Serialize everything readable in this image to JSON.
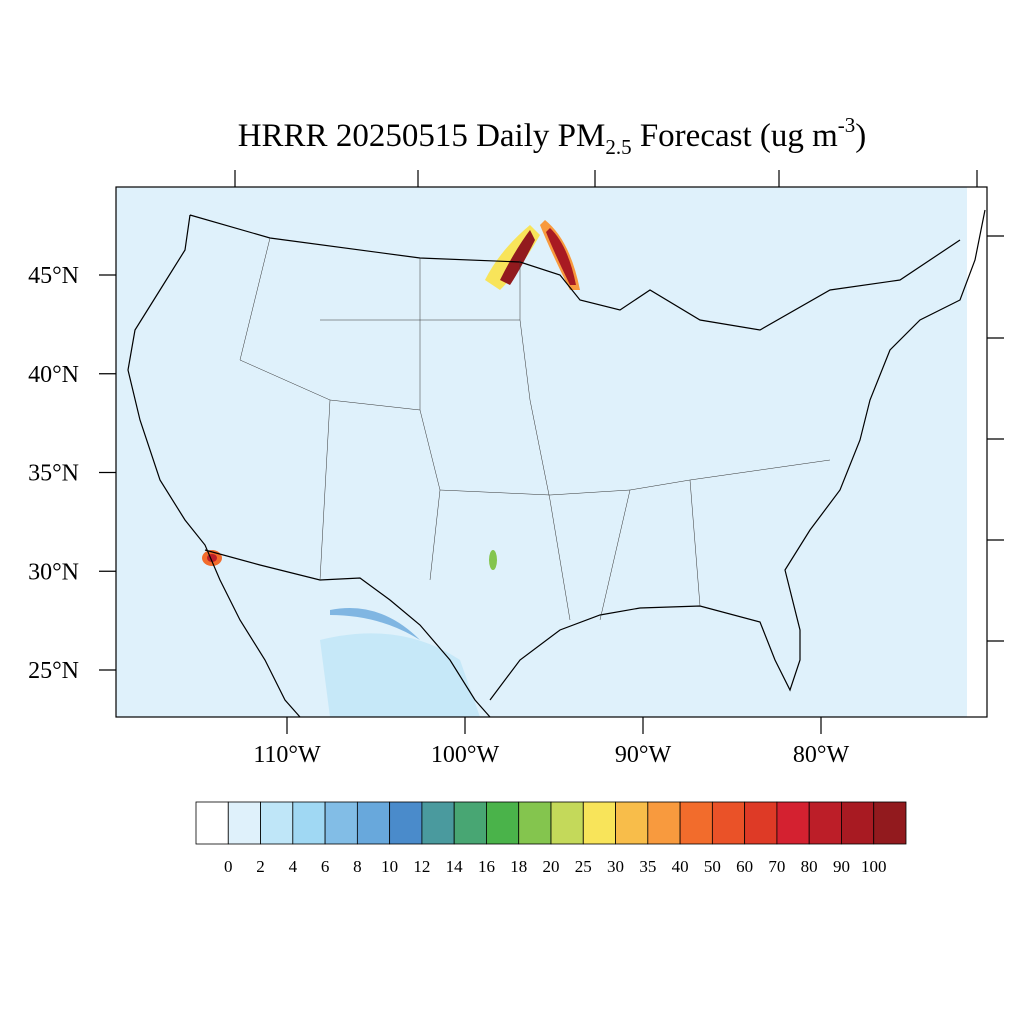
{
  "map": {
    "title": {
      "main": "HRRR 20250515 Daily PM",
      "sub": "2.5",
      "middle": " Forecast (ug m",
      "sup": "-3",
      "end": ")"
    },
    "lat_ticks": [
      {
        "value": 45,
        "label": "45°N"
      },
      {
        "value": 40,
        "label": "40°N"
      },
      {
        "value": 35,
        "label": "35°N"
      },
      {
        "value": 30,
        "label": "30°N"
      },
      {
        "value": 25,
        "label": "25°N"
      }
    ],
    "lon_ticks": [
      {
        "value": -110,
        "label": "110°W"
      },
      {
        "value": -100,
        "label": "100°W"
      },
      {
        "value": -90,
        "label": "90°W"
      },
      {
        "value": -80,
        "label": "80°W"
      }
    ],
    "colorbar": {
      "levels": [
        0,
        2,
        4,
        6,
        8,
        10,
        12,
        14,
        16,
        18,
        20,
        25,
        30,
        35,
        40,
        50,
        60,
        70,
        80,
        90,
        100
      ],
      "colors": [
        "#ffffff",
        "#dff1fb",
        "#bfe6f8",
        "#a0d8f3",
        "#82bde6",
        "#68a8dc",
        "#4a8bcb",
        "#4a9a9e",
        "#48a673",
        "#4ab34a",
        "#84c54e",
        "#c4d95a",
        "#f8e45a",
        "#f8bd4a",
        "#f89a3e",
        "#f26c2c",
        "#ea5228",
        "#de3a26",
        "#d42130",
        "#bc1e28",
        "#a81a22",
        "#921a1e"
      ]
    }
  }
}
